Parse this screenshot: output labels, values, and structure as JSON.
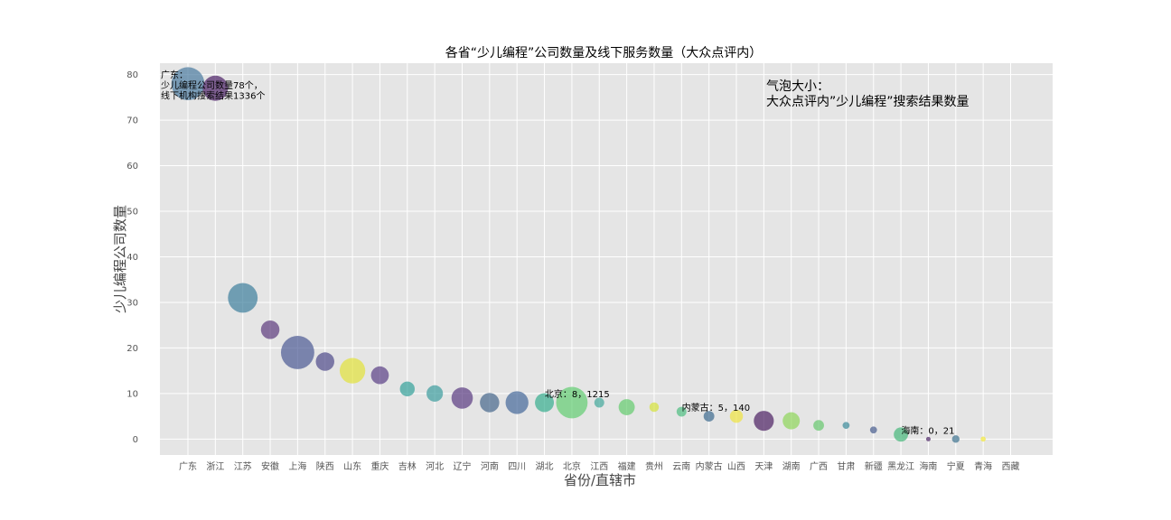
{
  "chart_data": {
    "type": "scatter",
    "title": "各省“少儿编程”公司数量及线下服务数量（大众点评内）",
    "xlabel": "省份/直辖市",
    "ylabel": "少儿编程公司数量",
    "ylim": [
      -3.5,
      82.5
    ],
    "yticks": [
      0,
      10,
      20,
      30,
      40,
      50,
      60,
      70,
      80
    ],
    "grid": true,
    "categories": [
      "广东",
      "浙江",
      "江苏",
      "安徽",
      "上海",
      "陕西",
      "山东",
      "重庆",
      "吉林",
      "河北",
      "辽宁",
      "河南",
      "四川",
      "湖北",
      "北京",
      "江西",
      "福建",
      "贵州",
      "云南",
      "内蒙古",
      "山西",
      "天津",
      "湖南",
      "广西",
      "甘肃",
      "新疆",
      "黑龙江",
      "海南",
      "宁夏",
      "青海",
      "西藏"
    ],
    "values": [
      78,
      77,
      31,
      24,
      19,
      17,
      15,
      14,
      11,
      10,
      9,
      8,
      8,
      8,
      8,
      8,
      7,
      7,
      6,
      5,
      5,
      4,
      4,
      3,
      3,
      2,
      1,
      0,
      0,
      0,
      null
    ],
    "bubble_size_meaning": "大众点评内“少儿编程”搜索结果数量",
    "bubble_sizes": [
      1336,
      780,
      1080,
      420,
      1360,
      420,
      800,
      390,
      270,
      330,
      560,
      460,
      640,
      440,
      1215,
      120,
      320,
      110,
      120,
      140,
      210,
      490,
      360,
      140,
      60,
      60,
      250,
      21,
      70,
      32,
      null
    ],
    "colors": [
      "#4a7aa0",
      "#4b2166",
      "#3d7f9c",
      "#5c3a7e",
      "#4b5a94",
      "#4f4a8a",
      "#e2e23a",
      "#5a3f86",
      "#33a19a",
      "#3c9c9e",
      "#5a3a82",
      "#46668c",
      "#45689a",
      "#36ae8e",
      "#62cd72",
      "#43a89b",
      "#64cc6e",
      "#d6e23c",
      "#4dbd80",
      "#3c6a8e",
      "#f0e440",
      "#4b1f63",
      "#8ed65a",
      "#67c86e",
      "#3a8a9a",
      "#475d8e",
      "#46b87a",
      "#4b2565",
      "#3e7490",
      "#f2e83a",
      null
    ],
    "annotations": [
      {
        "target": "广东",
        "lines": [
          "广东：",
          "少儿编程公司数量78个，",
          "线下机构搜索结果1336个"
        ]
      },
      {
        "target": "北京",
        "lines": [
          "北京：8，1215"
        ]
      },
      {
        "target": "内蒙古",
        "lines": [
          "内蒙古：5，140"
        ]
      },
      {
        "target": "海南",
        "lines": [
          "海南：0，21"
        ]
      }
    ],
    "size_note_lines": [
      "气泡大小：",
      "大众点评内”少儿编程”搜索结果数量"
    ],
    "plot_background": "#e5e5e5"
  }
}
